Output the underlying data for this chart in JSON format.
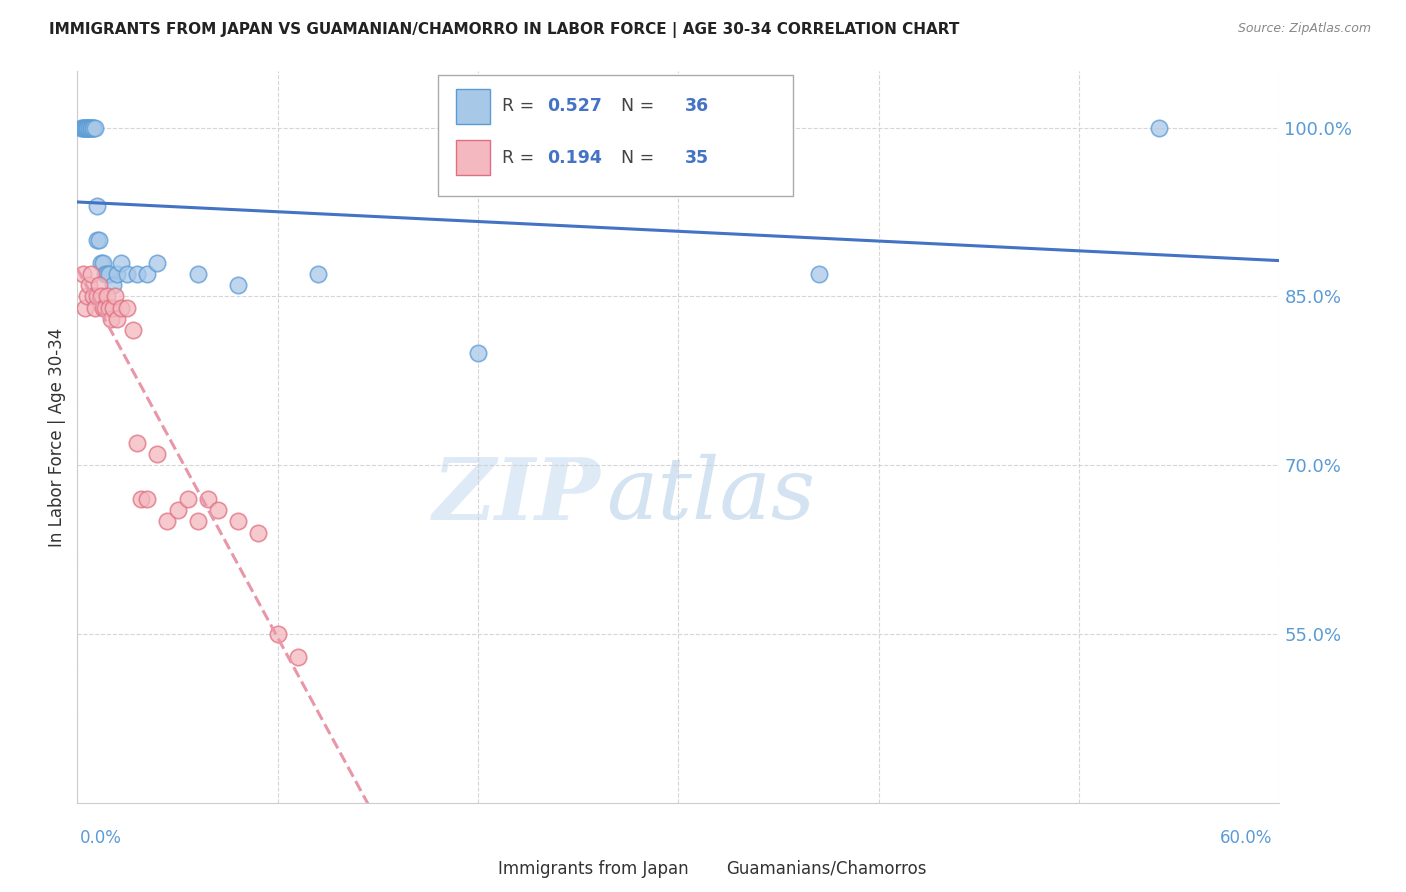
{
  "title": "IMMIGRANTS FROM JAPAN VS GUAMANIAN/CHAMORRO IN LABOR FORCE | AGE 30-34 CORRELATION CHART",
  "source": "Source: ZipAtlas.com",
  "ylabel": "In Labor Force | Age 30-34",
  "xlim": [
    0.0,
    0.6
  ],
  "ylim": [
    0.4,
    1.05
  ],
  "blue_color": "#a8c8e8",
  "blue_edge": "#5b9bd5",
  "pink_color": "#f4b8c0",
  "pink_edge": "#e07080",
  "trend_blue": "#4472c4",
  "trend_pink": "#e896a8",
  "blue_R": 0.527,
  "blue_N": 36,
  "pink_R": 0.194,
  "pink_N": 35,
  "japan_x": [
    0.002,
    0.003,
    0.003,
    0.004,
    0.004,
    0.005,
    0.005,
    0.005,
    0.006,
    0.006,
    0.007,
    0.007,
    0.008,
    0.008,
    0.009,
    0.01,
    0.01,
    0.011,
    0.012,
    0.013,
    0.014,
    0.015,
    0.016,
    0.018,
    0.02,
    0.022,
    0.025,
    0.03,
    0.035,
    0.04,
    0.06,
    0.08,
    0.12,
    0.2,
    0.37,
    0.54
  ],
  "japan_y": [
    1.0,
    1.0,
    1.0,
    1.0,
    1.0,
    1.0,
    1.0,
    1.0,
    1.0,
    1.0,
    1.0,
    1.0,
    1.0,
    1.0,
    1.0,
    0.93,
    0.9,
    0.9,
    0.88,
    0.88,
    0.87,
    0.87,
    0.87,
    0.86,
    0.87,
    0.88,
    0.87,
    0.87,
    0.87,
    0.88,
    0.87,
    0.86,
    0.87,
    0.8,
    0.87,
    1.0
  ],
  "guam_x": [
    0.003,
    0.004,
    0.005,
    0.006,
    0.007,
    0.008,
    0.009,
    0.01,
    0.011,
    0.012,
    0.013,
    0.014,
    0.015,
    0.016,
    0.017,
    0.018,
    0.019,
    0.02,
    0.022,
    0.025,
    0.028,
    0.03,
    0.032,
    0.035,
    0.04,
    0.045,
    0.05,
    0.055,
    0.06,
    0.065,
    0.07,
    0.08,
    0.09,
    0.1,
    0.11
  ],
  "guam_y": [
    0.87,
    0.84,
    0.85,
    0.86,
    0.87,
    0.85,
    0.84,
    0.85,
    0.86,
    0.85,
    0.84,
    0.84,
    0.85,
    0.84,
    0.83,
    0.84,
    0.85,
    0.83,
    0.84,
    0.84,
    0.82,
    0.72,
    0.67,
    0.67,
    0.71,
    0.65,
    0.66,
    0.67,
    0.65,
    0.67,
    0.66,
    0.65,
    0.64,
    0.55,
    0.53
  ],
  "watermark_zip": "ZIP",
  "watermark_atlas": "atlas",
  "background_color": "#ffffff",
  "grid_color": "#cccccc",
  "axis_color": "#5b9bd5",
  "legend_box_color": "#ffffff",
  "legend_border_color": "#aaaaaa"
}
